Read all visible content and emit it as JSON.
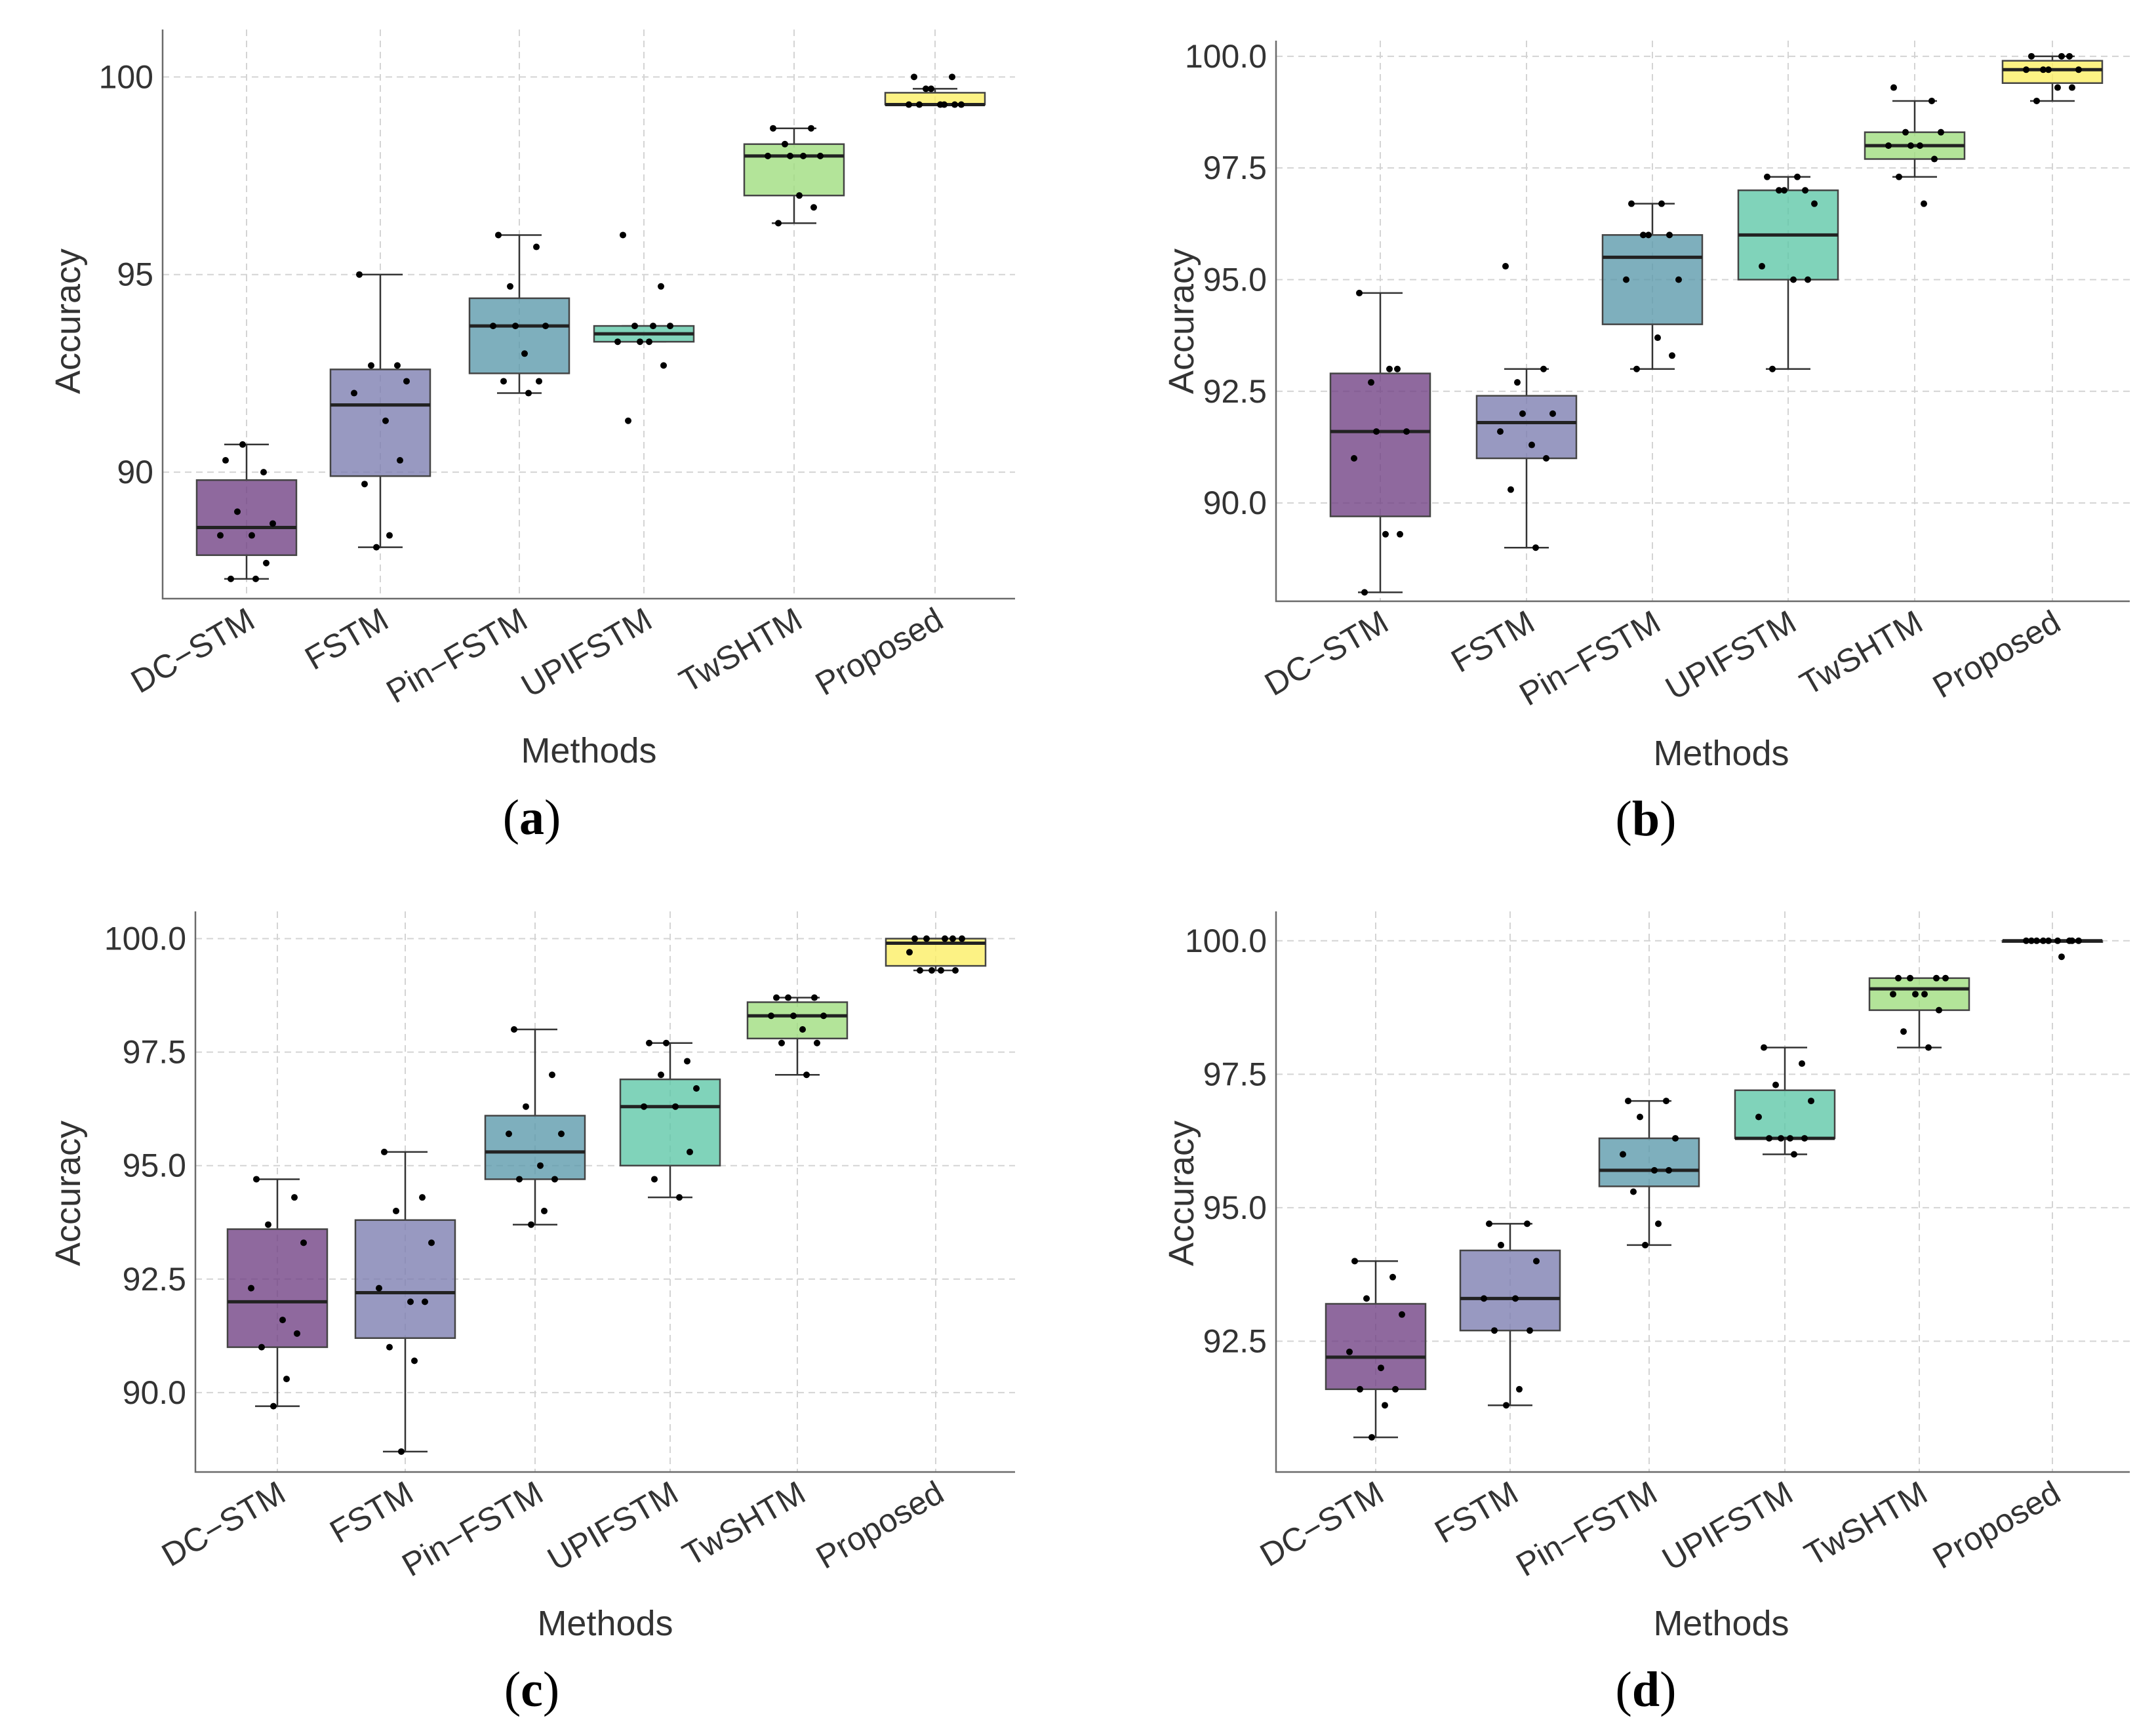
{
  "figure": {
    "ylabel": "Accuracy",
    "xlabel": "Methods"
  },
  "colors": {
    "DC-STM": "#6f3f83",
    "FSTM": "#7b7cb0",
    "Pin-FSTM": "#5a99ab",
    "UPIFSTM": "#5cc6a6",
    "TwSHTM": "#9edc7c",
    "Proposed": "#fbee62"
  },
  "chart_data": [
    {
      "panel": "a",
      "caption": "(a)",
      "type": "box",
      "title": "",
      "xlabel": "Methods",
      "ylabel": "Accuracy",
      "categories": [
        "DC−STM",
        "FSTM",
        "Pin−FSTM",
        "UPIFSTM",
        "TwSHTM",
        "Proposed"
      ],
      "ylim": [
        86.8,
        101.2
      ],
      "yticks": [
        90,
        95,
        100
      ],
      "ytick_labels": [
        "90",
        "95",
        "100"
      ],
      "boxes": [
        {
          "min": 87.3,
          "q1": 87.9,
          "median": 88.6,
          "q3": 89.8,
          "max": 90.7
        },
        {
          "min": 88.1,
          "q1": 89.9,
          "median": 91.7,
          "q3": 92.6,
          "max": 95.0
        },
        {
          "min": 92.0,
          "q1": 92.5,
          "median": 93.7,
          "q3": 94.4,
          "max": 96.0
        },
        {
          "min": 93.3,
          "q1": 93.3,
          "median": 93.5,
          "q3": 93.7,
          "max": 93.7
        },
        {
          "min": 96.3,
          "q1": 97.0,
          "median": 98.0,
          "q3": 98.3,
          "max": 98.7
        },
        {
          "min": 99.3,
          "q1": 99.3,
          "median": 99.3,
          "q3": 99.6,
          "max": 99.7
        }
      ],
      "points": [
        [
          90.3,
          90.0,
          89.0,
          88.7,
          88.4,
          88.4,
          87.7,
          87.3,
          87.3,
          90.7
        ],
        [
          95.0,
          92.7,
          92.7,
          92.3,
          92.0,
          91.3,
          90.3,
          89.7,
          88.4,
          88.1
        ],
        [
          96.0,
          95.7,
          94.7,
          93.7,
          93.7,
          93.0,
          92.3,
          92.3,
          92.0,
          93.7
        ],
        [
          96.0,
          94.7,
          93.7,
          93.7,
          93.3,
          93.3,
          92.7,
          91.3,
          93.7,
          93.3
        ],
        [
          98.7,
          98.7,
          98.3,
          98.0,
          98.0,
          97.0,
          96.7,
          96.3,
          98.0,
          98.0
        ],
        [
          100.0,
          100.0,
          99.7,
          99.3,
          99.3,
          99.3,
          99.3,
          99.3,
          99.3,
          99.7
        ]
      ]
    },
    {
      "panel": "b",
      "caption": "(b)",
      "type": "box",
      "title": "",
      "xlabel": "Methods",
      "ylabel": "Accuracy",
      "categories": [
        "DC−STM",
        "FSTM",
        "Pin−FSTM",
        "UPIFSTM",
        "TwSHTM",
        "Proposed"
      ],
      "ylim": [
        87.8,
        100.35
      ],
      "yticks": [
        90.0,
        92.5,
        95.0,
        97.5,
        100.0
      ],
      "ytick_labels": [
        "90.0",
        "92.5",
        "95.0",
        "97.5",
        "100.0"
      ],
      "boxes": [
        {
          "min": 88.0,
          "q1": 89.7,
          "median": 91.6,
          "q3": 92.9,
          "max": 94.7
        },
        {
          "min": 89.0,
          "q1": 91.0,
          "median": 91.8,
          "q3": 92.4,
          "max": 93.0
        },
        {
          "min": 93.0,
          "q1": 94.0,
          "median": 95.5,
          "q3": 96.0,
          "max": 96.7
        },
        {
          "min": 93.0,
          "q1": 95.0,
          "median": 96.0,
          "q3": 97.0,
          "max": 97.3
        },
        {
          "min": 97.3,
          "q1": 97.7,
          "median": 98.0,
          "q3": 98.3,
          "max": 99.0
        },
        {
          "min": 99.0,
          "q1": 99.4,
          "median": 99.7,
          "q3": 99.9,
          "max": 100.0
        }
      ],
      "points": [
        [
          94.7,
          93.0,
          92.7,
          91.6,
          91.0,
          89.3,
          89.3,
          88.0,
          93.0,
          91.6
        ],
        [
          95.3,
          93.0,
          92.7,
          92.0,
          91.6,
          91.3,
          91.0,
          90.3,
          89.0,
          92.0
        ],
        [
          96.7,
          96.0,
          96.0,
          95.0,
          95.0,
          93.7,
          93.3,
          93.0,
          96.7,
          96.0
        ],
        [
          97.3,
          97.0,
          97.0,
          96.7,
          95.3,
          95.0,
          95.0,
          93.0,
          97.3,
          97.0
        ],
        [
          99.3,
          99.0,
          98.3,
          98.3,
          98.0,
          98.0,
          97.7,
          97.3,
          96.7,
          98.0
        ],
        [
          100.0,
          100.0,
          99.7,
          99.7,
          99.7,
          99.3,
          99.3,
          99.0,
          100.0,
          99.7
        ]
      ]
    },
    {
      "panel": "c",
      "caption": "(c)",
      "type": "box",
      "title": "",
      "xlabel": "Methods",
      "ylabel": "Accuracy",
      "categories": [
        "DC−STM",
        "FSTM",
        "Pin−FSTM",
        "UPIFSTM",
        "TwSHTM",
        "Proposed"
      ],
      "ylim": [
        88.25,
        100.6
      ],
      "yticks": [
        90.0,
        92.5,
        95.0,
        97.5,
        100.0
      ],
      "ytick_labels": [
        "90.0",
        "92.5",
        "95.0",
        "97.5",
        "100.0"
      ],
      "boxes": [
        {
          "min": 89.7,
          "q1": 91.0,
          "median": 92.0,
          "q3": 93.6,
          "max": 94.7
        },
        {
          "min": 88.7,
          "q1": 91.2,
          "median": 92.2,
          "q3": 93.8,
          "max": 95.3
        },
        {
          "min": 93.7,
          "q1": 94.7,
          "median": 95.3,
          "q3": 96.1,
          "max": 98.0
        },
        {
          "min": 94.3,
          "q1": 95.0,
          "median": 96.3,
          "q3": 96.9,
          "max": 97.7
        },
        {
          "min": 97.0,
          "q1": 97.8,
          "median": 98.3,
          "q3": 98.6,
          "max": 98.7
        },
        {
          "min": 99.3,
          "q1": 99.4,
          "median": 99.9,
          "q3": 100.0,
          "max": 100.0
        }
      ],
      "points": [
        [
          94.7,
          94.3,
          93.7,
          93.3,
          92.3,
          91.6,
          91.3,
          91.0,
          90.3,
          89.7
        ],
        [
          95.3,
          94.3,
          94.0,
          93.3,
          92.3,
          92.0,
          92.0,
          91.0,
          90.7,
          88.7
        ],
        [
          98.0,
          97.0,
          96.3,
          95.7,
          95.7,
          95.0,
          94.7,
          94.7,
          94.0,
          93.7
        ],
        [
          97.7,
          97.3,
          97.0,
          96.7,
          96.3,
          96.3,
          95.3,
          94.7,
          94.3,
          97.7
        ],
        [
          98.7,
          98.7,
          98.7,
          98.3,
          98.3,
          98.0,
          97.7,
          97.7,
          97.0,
          98.3
        ],
        [
          100.0,
          100.0,
          100.0,
          100.0,
          99.7,
          99.3,
          99.3,
          99.3,
          100.0,
          99.3
        ]
      ]
    },
    {
      "panel": "d",
      "caption": "(d)",
      "type": "box",
      "title": "",
      "xlabel": "Methods",
      "ylabel": "Accuracy",
      "categories": [
        "DC−STM",
        "FSTM",
        "Pin−FSTM",
        "UPIFSTM",
        "TwSHTM",
        "Proposed"
      ],
      "ylim": [
        90.05,
        100.55
      ],
      "yticks": [
        92.5,
        95.0,
        97.5,
        100.0
      ],
      "ytick_labels": [
        "92.5",
        "95.0",
        "97.5",
        "100.0"
      ],
      "boxes": [
        {
          "min": 90.7,
          "q1": 91.6,
          "median": 92.2,
          "q3": 93.2,
          "max": 94.0
        },
        {
          "min": 91.3,
          "q1": 92.7,
          "median": 93.3,
          "q3": 94.2,
          "max": 94.7
        },
        {
          "min": 94.3,
          "q1": 95.4,
          "median": 95.7,
          "q3": 96.3,
          "max": 97.0
        },
        {
          "min": 96.0,
          "q1": 96.3,
          "median": 96.3,
          "q3": 97.2,
          "max": 98.0
        },
        {
          "min": 98.0,
          "q1": 98.7,
          "median": 99.1,
          "q3": 99.3,
          "max": 99.3
        },
        {
          "min": 100.0,
          "q1": 100.0,
          "median": 100.0,
          "q3": 100.0,
          "max": 100.0
        }
      ],
      "points": [
        [
          94.0,
          93.7,
          93.3,
          93.0,
          92.3,
          92.0,
          91.6,
          91.6,
          91.3,
          90.7
        ],
        [
          94.7,
          94.7,
          94.3,
          94.0,
          93.3,
          93.3,
          92.7,
          92.7,
          91.6,
          91.3
        ],
        [
          97.0,
          97.0,
          96.7,
          96.3,
          96.0,
          95.7,
          95.7,
          95.3,
          94.7,
          94.3
        ],
        [
          98.0,
          97.7,
          97.3,
          97.0,
          96.7,
          96.3,
          96.3,
          96.3,
          96.0,
          96.3
        ],
        [
          99.3,
          99.3,
          99.3,
          99.3,
          99.0,
          99.0,
          98.7,
          98.3,
          98.0,
          99.0
        ],
        [
          100.0,
          100.0,
          100.0,
          100.0,
          100.0,
          100.0,
          100.0,
          100.0,
          99.7,
          100.0
        ]
      ]
    }
  ]
}
